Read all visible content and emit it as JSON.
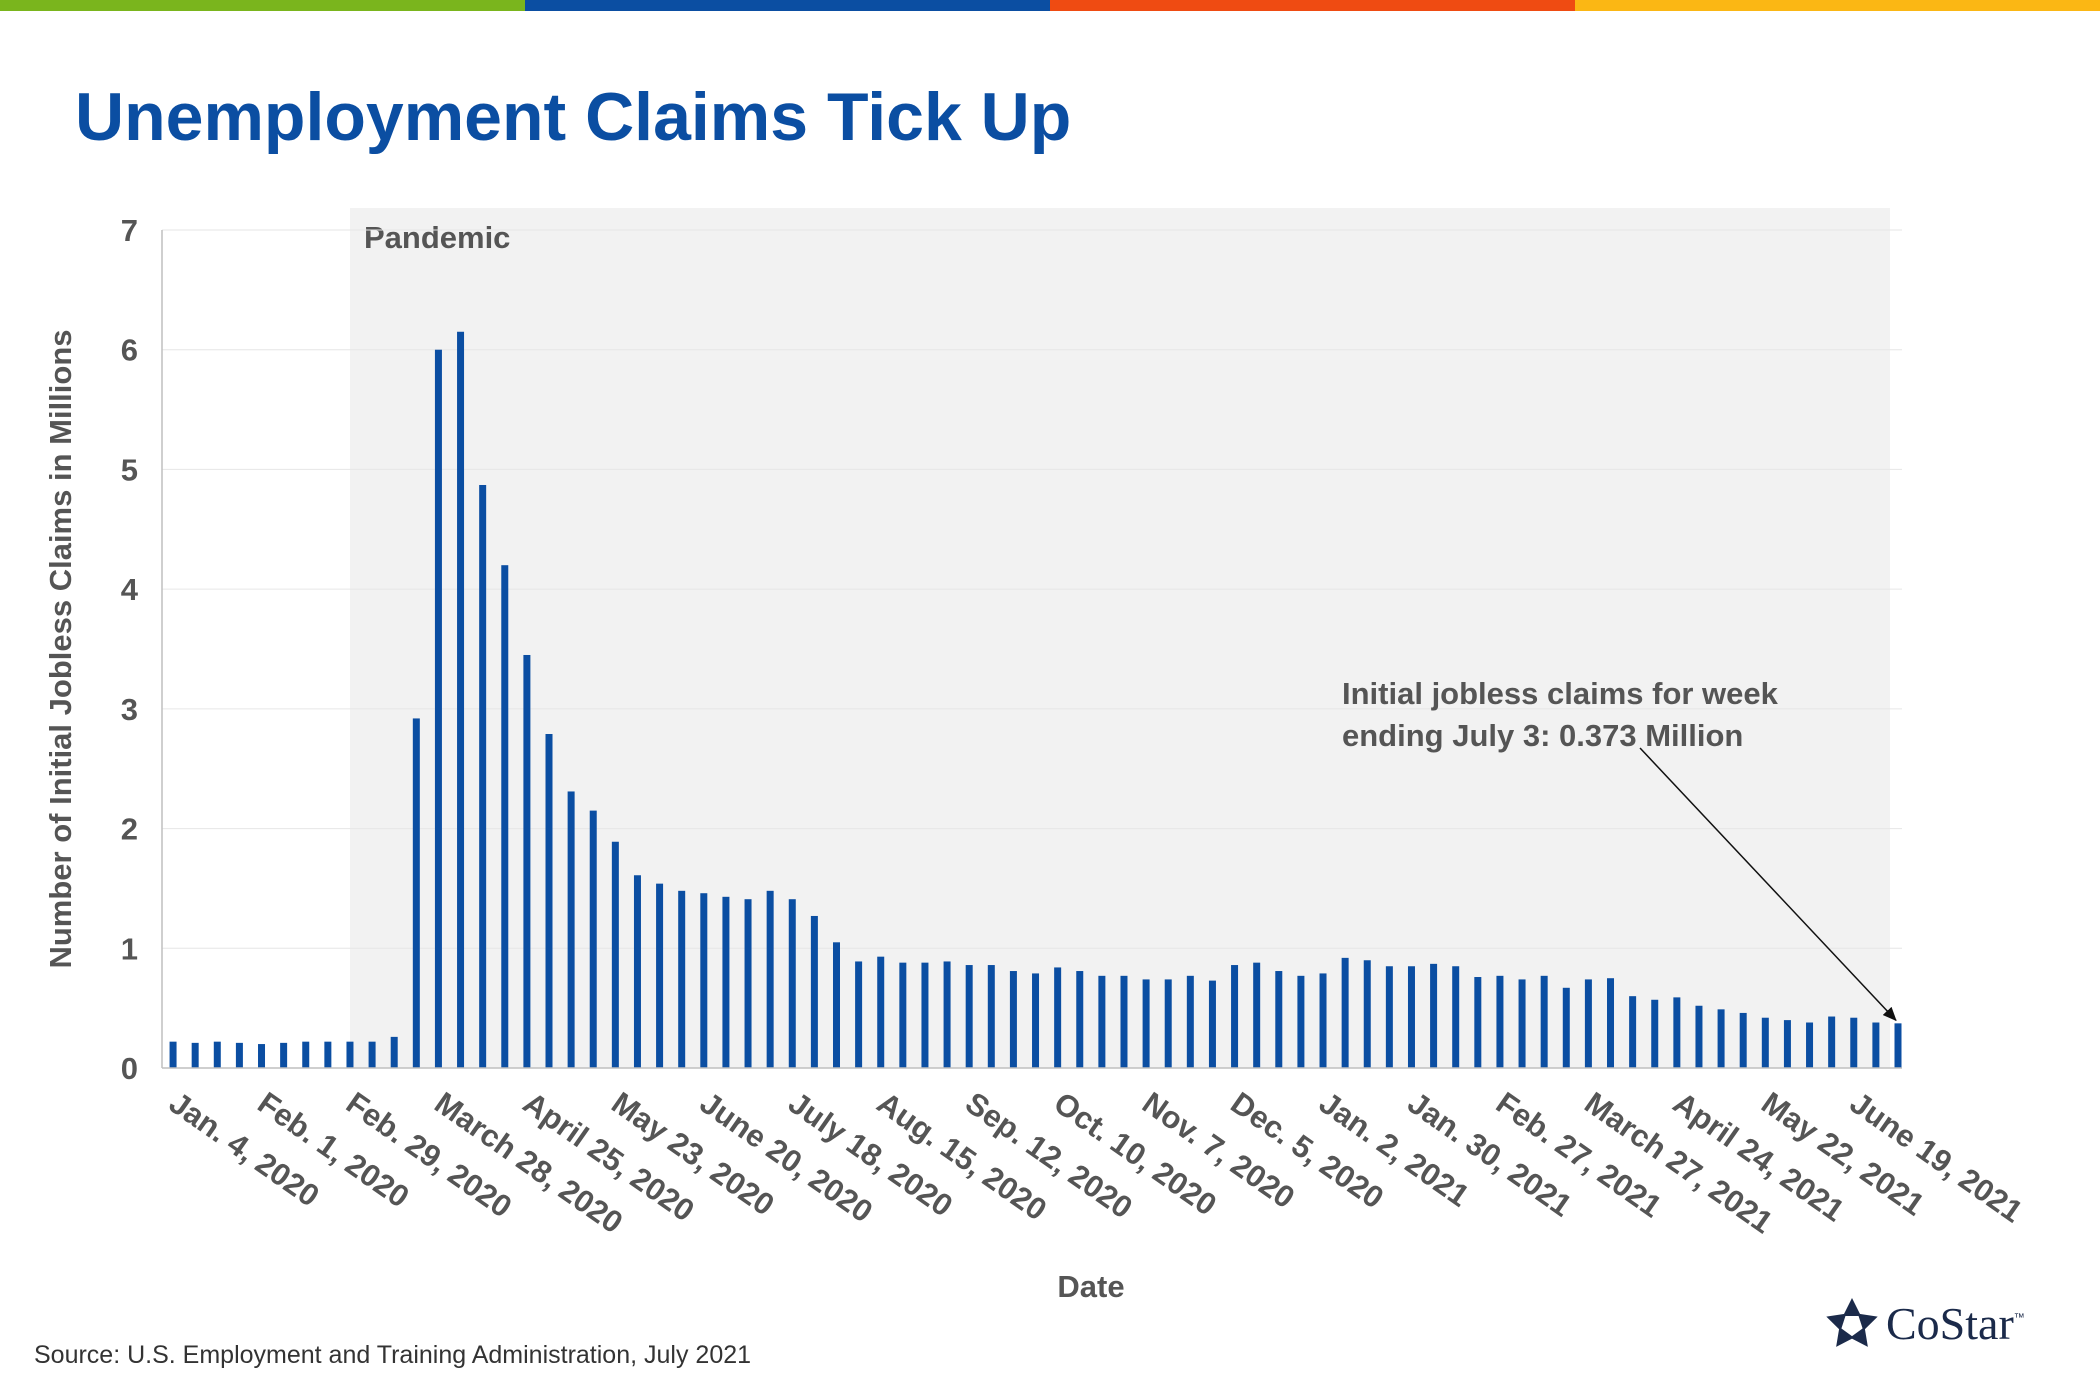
{
  "slide": {
    "title": "Unemployment Claims Tick Up",
    "source": "Source: U.S. Employment and Training Administration, July 2021",
    "logo_text": "CoStar",
    "logo_tm": "™",
    "strip_colors": [
      "#7ab51d",
      "#0b4ea2",
      "#ef4b12",
      "#fbb714"
    ],
    "accent": "#0b4ea2"
  },
  "chart_data": {
    "type": "bar",
    "title": "",
    "xlabel": "Date",
    "ylabel": "Number of Initial Jobless Claims in Millions",
    "ylim": [
      0,
      7
    ],
    "yticks": [
      0,
      1,
      2,
      3,
      4,
      5,
      6,
      7
    ],
    "tick_labels": [
      "Jan. 4, 2020",
      "Feb. 1, 2020",
      "Feb. 29, 2020",
      "March 28, 2020",
      "April 25, 2020",
      "May 23, 2020",
      "June 20, 2020",
      "July 18, 2020",
      "Aug. 15, 2020",
      "Sep. 12, 2020",
      "Oct. 10, 2020",
      "Nov. 7, 2020",
      "Dec. 5, 2020",
      "Jan. 2, 2021",
      "Jan. 30, 2021",
      "Feb. 27, 2021",
      "March 27, 2021",
      "April 24, 2021",
      "May 22, 2021",
      "June 19, 2021"
    ],
    "first_week": "Jan. 4, 2020",
    "last_week": "July 3, 2021",
    "values": [
      0.22,
      0.21,
      0.22,
      0.21,
      0.2,
      0.21,
      0.22,
      0.22,
      0.22,
      0.22,
      0.26,
      2.92,
      6.0,
      6.15,
      4.87,
      4.2,
      3.45,
      2.79,
      2.31,
      2.15,
      1.89,
      1.61,
      1.54,
      1.48,
      1.46,
      1.43,
      1.41,
      1.48,
      1.41,
      1.27,
      1.05,
      0.89,
      0.93,
      0.88,
      0.88,
      0.89,
      0.86,
      0.86,
      0.81,
      0.79,
      0.84,
      0.81,
      0.77,
      0.77,
      0.74,
      0.74,
      0.77,
      0.73,
      0.86,
      0.88,
      0.81,
      0.77,
      0.79,
      0.92,
      0.9,
      0.85,
      0.85,
      0.87,
      0.85,
      0.76,
      0.77,
      0.74,
      0.77,
      0.67,
      0.74,
      0.75,
      0.6,
      0.57,
      0.59,
      0.52,
      0.49,
      0.46,
      0.42,
      0.4,
      0.38,
      0.43,
      0.42,
      0.38,
      0.373
    ],
    "pandemic_start_week_index": 8.5,
    "shaded_region_label": "Pandemic",
    "annotation": {
      "line1": "Initial jobless claims for week",
      "line2": "ending July 3: 0.373 Million",
      "points_to_week_index": 78
    },
    "bar_color": "#0b4ea2",
    "shade_color": "#f2f2f2",
    "grid": true,
    "legend": "none"
  }
}
